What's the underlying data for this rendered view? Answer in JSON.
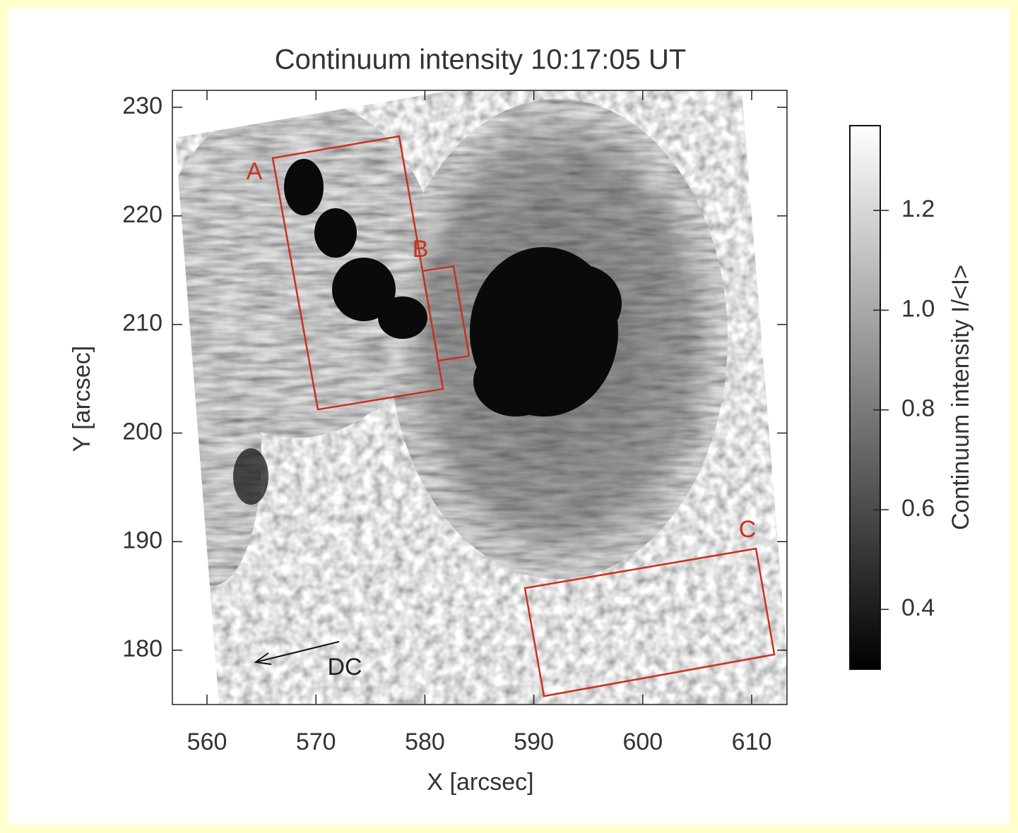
{
  "chart_data": {
    "type": "image",
    "title": "Continuum intensity 10:17:05 UT",
    "x_label": "X [arcsec]",
    "y_label": "Y [arcsec]",
    "xlim": [
      556.82,
      613.24
    ],
    "ylim": [
      175.0,
      231.56
    ],
    "xticks": [
      560,
      570,
      580,
      590,
      600,
      610
    ],
    "yticks": [
      180,
      190,
      200,
      210,
      220,
      230
    ],
    "regions": [
      {
        "name": "A",
        "color": "#c8321e",
        "x": [
          566.03,
          577.64,
          581.66,
          570.18
        ],
        "y": [
          225.32,
          227.33,
          204.06,
          202.17
        ]
      },
      {
        "name": "B",
        "color": "#c8321e",
        "x": [
          579.78,
          582.63,
          584.06,
          581.21
        ],
        "y": [
          214.92,
          215.37,
          207.11,
          206.66
        ]
      },
      {
        "name": "C",
        "color": "#c8321e",
        "x": [
          589.18,
          610.39,
          612.08,
          590.93
        ],
        "y": [
          185.72,
          189.36,
          179.61,
          175.77
        ]
      }
    ],
    "annotation": "DC",
    "colorbar": {
      "label": "Continuum intensity I/<I>",
      "lim": [
        0.28,
        1.37
      ],
      "ticks": [
        0.4,
        0.6,
        0.8,
        {
          "value": 1,
          "label": "1.0"
        },
        1.2
      ]
    }
  }
}
